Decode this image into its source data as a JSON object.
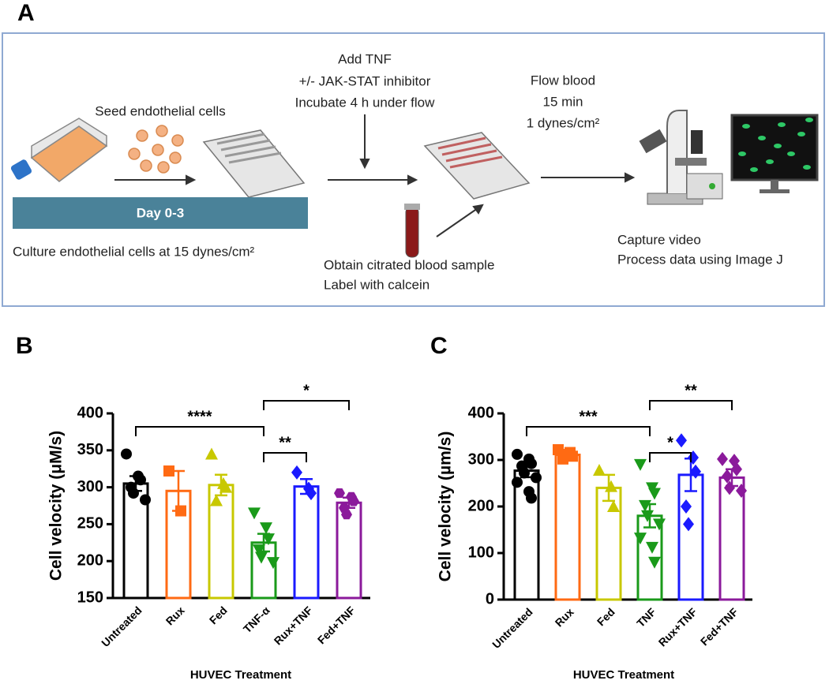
{
  "diagram": {
    "panel_label": "A",
    "seed": "Seed endothelial  cells",
    "treatment": [
      "Add TNF",
      "+/- JAK-STAT inhibitor",
      "Incubate 4 h under flow"
    ],
    "flow": [
      "Flow blood",
      "15 min",
      "1 dynes/cm²"
    ],
    "day_label": "Day 0-3",
    "culture": "Culture endothelial cells at 15 dynes/cm²",
    "blood": [
      "Obtain citrated blood sample",
      "Label with calcein"
    ],
    "capture": [
      "Capture video",
      "Process data using Image J"
    ]
  },
  "chart_data": [
    {
      "type": "bar",
      "panel_label": "B",
      "y_label": "Cell velocity (μM/s)",
      "x_label": "HUVEC Treatment",
      "categories": [
        "Untreated",
        "Rux",
        "Fed",
        "TNF-α",
        "Rux+TNF",
        "Fed+TNF"
      ],
      "colors": [
        "#000000",
        "#ff6a13",
        "#c8c800",
        "#1a9a1a",
        "#1a1aff",
        "#8b1a9b"
      ],
      "markers": [
        "circle",
        "square",
        "triangle-up",
        "triangle-down",
        "diamond",
        "hexagon"
      ],
      "values": [
        305,
        295,
        303,
        225,
        301,
        279
      ],
      "errors": [
        10,
        27,
        14,
        12,
        10,
        7
      ],
      "points": [
        [
          345,
          315,
          310,
          300,
          292,
          283
        ],
        [
          322,
          268
        ],
        [
          345,
          305,
          300,
          282
        ],
        [
          265,
          245,
          230,
          215,
          205,
          198
        ],
        [
          320,
          298,
          292
        ],
        [
          292,
          287,
          281,
          272,
          263
        ]
      ],
      "ylim": [
        150,
        400
      ],
      "yticks": [
        150,
        200,
        250,
        300,
        350,
        400
      ],
      "annotations": [
        {
          "text": "*",
          "between": [
            3,
            5
          ]
        },
        {
          "text": "****",
          "between": [
            0,
            3
          ]
        },
        {
          "text": "**",
          "between": [
            3,
            4
          ]
        }
      ]
    },
    {
      "type": "bar",
      "panel_label": "C",
      "y_label": "Cell velocity (µm/s)",
      "x_label": "HUVEC Treatment",
      "categories": [
        "Untreated",
        "Rux",
        "Fed",
        "TNF",
        "Rux+TNF",
        "Fed+TNF"
      ],
      "colors": [
        "#000000",
        "#ff6a13",
        "#c8c800",
        "#1a9a1a",
        "#1a1aff",
        "#8b1a9b"
      ],
      "markers": [
        "circle",
        "square",
        "triangle-up",
        "triangle-down",
        "diamond",
        "diamond"
      ],
      "values": [
        277,
        311,
        240,
        180,
        268,
        262
      ],
      "errors": [
        14,
        7,
        28,
        25,
        35,
        18
      ],
      "points": [
        [
          312,
          302,
          292,
          287,
          272,
          262,
          252,
          232,
          218
        ],
        [
          322,
          316,
          308,
          302,
          312
        ],
        [
          278,
          243,
          200
        ],
        [
          290,
          240,
          228,
          202,
          180,
          162,
          132,
          112,
          80
        ],
        [
          342,
          305,
          275,
          200,
          162
        ],
        [
          302,
          298,
          280,
          265,
          240,
          234
        ]
      ],
      "ylim": [
        0,
        400
      ],
      "yticks": [
        0,
        100,
        200,
        300,
        400
      ],
      "annotations": [
        {
          "text": "**",
          "between": [
            3,
            5
          ]
        },
        {
          "text": "***",
          "between": [
            0,
            3
          ]
        },
        {
          "text": "*",
          "between": [
            3,
            4
          ]
        }
      ]
    }
  ]
}
